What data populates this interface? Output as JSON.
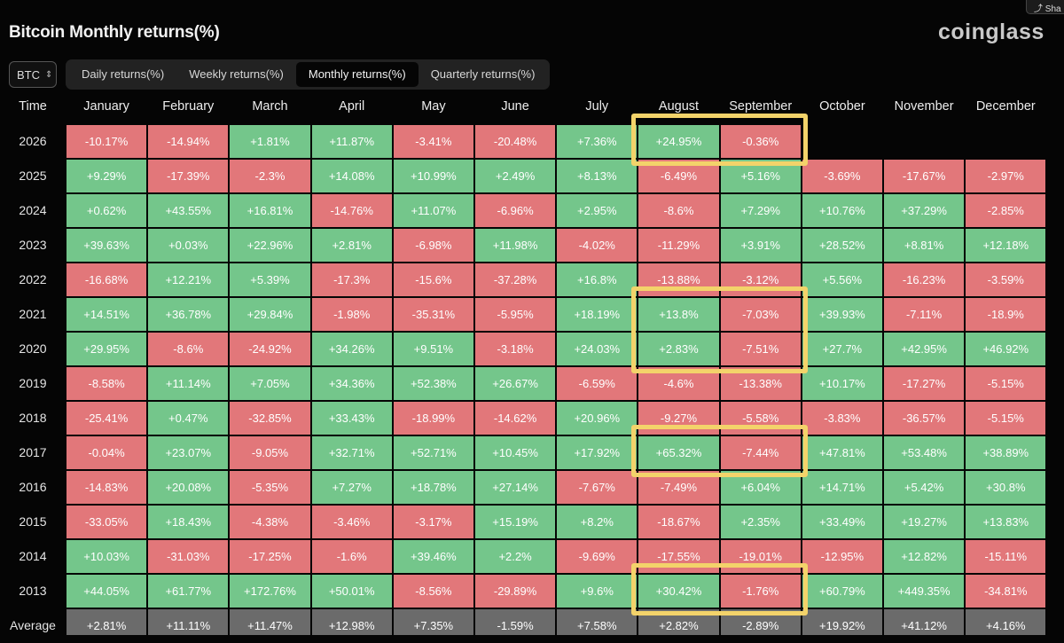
{
  "page_title": "Bitcoin Monthly returns(%)",
  "brand": "coinglass",
  "share_label": "Sha",
  "asset_selector": {
    "value": "BTC",
    "icon": "chevron-updown-icon"
  },
  "tabs": [
    {
      "label": "Daily returns(%)",
      "active": false
    },
    {
      "label": "Weekly returns(%)",
      "active": false
    },
    {
      "label": "Monthly returns(%)",
      "active": true
    },
    {
      "label": "Quarterly returns(%)",
      "active": false
    }
  ],
  "columns": [
    "Time",
    "January",
    "February",
    "March",
    "April",
    "May",
    "June",
    "July",
    "August",
    "September",
    "October",
    "November",
    "December"
  ],
  "rows": [
    {
      "label": "2026",
      "values": [
        "-10.17%",
        "-14.94%",
        "+1.81%",
        "+11.87%",
        "-3.41%",
        "-20.48%",
        "+7.36%",
        "+24.95%",
        "-0.36%",
        "",
        "",
        ""
      ]
    },
    {
      "label": "2025",
      "values": [
        "+9.29%",
        "-17.39%",
        "-2.3%",
        "+14.08%",
        "+10.99%",
        "+2.49%",
        "+8.13%",
        "-6.49%",
        "+5.16%",
        "-3.69%",
        "-17.67%",
        "-2.97%"
      ]
    },
    {
      "label": "2024",
      "values": [
        "+0.62%",
        "+43.55%",
        "+16.81%",
        "-14.76%",
        "+11.07%",
        "-6.96%",
        "+2.95%",
        "-8.6%",
        "+7.29%",
        "+10.76%",
        "+37.29%",
        "-2.85%"
      ]
    },
    {
      "label": "2023",
      "values": [
        "+39.63%",
        "+0.03%",
        "+22.96%",
        "+2.81%",
        "-6.98%",
        "+11.98%",
        "-4.02%",
        "-11.29%",
        "+3.91%",
        "+28.52%",
        "+8.81%",
        "+12.18%"
      ]
    },
    {
      "label": "2022",
      "values": [
        "-16.68%",
        "+12.21%",
        "+5.39%",
        "-17.3%",
        "-15.6%",
        "-37.28%",
        "+16.8%",
        "-13.88%",
        "-3.12%",
        "+5.56%",
        "-16.23%",
        "-3.59%"
      ]
    },
    {
      "label": "2021",
      "values": [
        "+14.51%",
        "+36.78%",
        "+29.84%",
        "-1.98%",
        "-35.31%",
        "-5.95%",
        "+18.19%",
        "+13.8%",
        "-7.03%",
        "+39.93%",
        "-7.11%",
        "-18.9%"
      ]
    },
    {
      "label": "2020",
      "values": [
        "+29.95%",
        "-8.6%",
        "-24.92%",
        "+34.26%",
        "+9.51%",
        "-3.18%",
        "+24.03%",
        "+2.83%",
        "-7.51%",
        "+27.7%",
        "+42.95%",
        "+46.92%"
      ]
    },
    {
      "label": "2019",
      "values": [
        "-8.58%",
        "+11.14%",
        "+7.05%",
        "+34.36%",
        "+52.38%",
        "+26.67%",
        "-6.59%",
        "-4.6%",
        "-13.38%",
        "+10.17%",
        "-17.27%",
        "-5.15%"
      ]
    },
    {
      "label": "2018",
      "values": [
        "-25.41%",
        "+0.47%",
        "-32.85%",
        "+33.43%",
        "-18.99%",
        "-14.62%",
        "+20.96%",
        "-9.27%",
        "-5.58%",
        "-3.83%",
        "-36.57%",
        "-5.15%"
      ]
    },
    {
      "label": "2017",
      "values": [
        "-0.04%",
        "+23.07%",
        "-9.05%",
        "+32.71%",
        "+52.71%",
        "+10.45%",
        "+17.92%",
        "+65.32%",
        "-7.44%",
        "+47.81%",
        "+53.48%",
        "+38.89%"
      ]
    },
    {
      "label": "2016",
      "values": [
        "-14.83%",
        "+20.08%",
        "-5.35%",
        "+7.27%",
        "+18.78%",
        "+27.14%",
        "-7.67%",
        "-7.49%",
        "+6.04%",
        "+14.71%",
        "+5.42%",
        "+30.8%"
      ]
    },
    {
      "label": "2015",
      "values": [
        "-33.05%",
        "+18.43%",
        "-4.38%",
        "-3.46%",
        "-3.17%",
        "+15.19%",
        "+8.2%",
        "-18.67%",
        "+2.35%",
        "+33.49%",
        "+19.27%",
        "+13.83%"
      ]
    },
    {
      "label": "2014",
      "values": [
        "+10.03%",
        "-31.03%",
        "-17.25%",
        "-1.6%",
        "+39.46%",
        "+2.2%",
        "-9.69%",
        "-17.55%",
        "-19.01%",
        "-12.95%",
        "+12.82%",
        "-15.11%"
      ]
    },
    {
      "label": "2013",
      "values": [
        "+44.05%",
        "+61.77%",
        "+172.76%",
        "+50.01%",
        "-8.56%",
        "-29.89%",
        "+9.6%",
        "+30.42%",
        "-1.76%",
        "+60.79%",
        "+449.35%",
        "-34.81%"
      ]
    }
  ],
  "average": {
    "label": "Average",
    "values": [
      "+2.81%",
      "+11.11%",
      "+11.47%",
      "+12.98%",
      "+7.35%",
      "-1.59%",
      "+7.58%",
      "+2.82%",
      "-2.89%",
      "+19.92%",
      "+41.12%",
      "+4.16%"
    ]
  },
  "highlights": [
    {
      "rows": [
        "2026"
      ],
      "months": [
        "August",
        "September"
      ]
    },
    {
      "rows": [
        "2021",
        "2020"
      ],
      "months": [
        "August",
        "September"
      ]
    },
    {
      "rows": [
        "2017"
      ],
      "months": [
        "August",
        "September"
      ]
    },
    {
      "rows": [
        "2013"
      ],
      "months": [
        "August",
        "September"
      ]
    }
  ],
  "colors": {
    "positive": "#74c68b",
    "negative": "#e2777a",
    "average": "#6b6b6b",
    "highlight": "#f3d36a",
    "background": "#050505"
  }
}
